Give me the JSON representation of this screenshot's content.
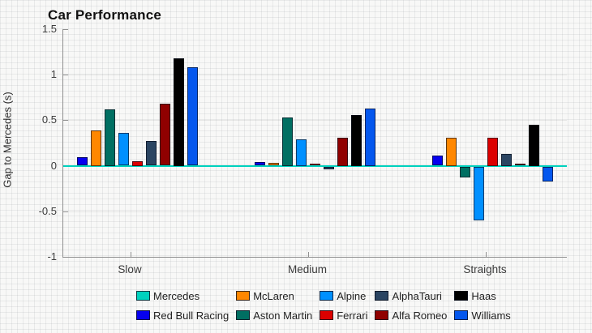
{
  "chart_data": {
    "type": "bar",
    "title": "Car Performance",
    "ylabel": "Gap to Mercedes (s)",
    "xlabel": "",
    "categories": [
      "Slow",
      "Medium",
      "Straights"
    ],
    "ylim": [
      -1,
      1.5
    ],
    "yticks": [
      1.5,
      1,
      0.5,
      0,
      -0.5,
      -1
    ],
    "legend_position": "bottom",
    "legend_columns": 5,
    "zero_line_color": "#00D2BE",
    "series": [
      {
        "name": "Mercedes",
        "color": "#00D2BE",
        "values": [
          0,
          0,
          0
        ]
      },
      {
        "name": "Red Bull Racing",
        "color": "#0600EF",
        "values": [
          0.09,
          0.04,
          0.11
        ]
      },
      {
        "name": "McLaren",
        "color": "#FF8700",
        "values": [
          0.39,
          0.03,
          0.31
        ]
      },
      {
        "name": "Aston Martin",
        "color": "#006F62",
        "values": [
          0.62,
          0.53,
          -0.12
        ]
      },
      {
        "name": "Alpine",
        "color": "#0090FF",
        "values": [
          0.36,
          0.29,
          -0.59
        ]
      },
      {
        "name": "Ferrari",
        "color": "#DC0000",
        "values": [
          0.05,
          0.02,
          0.31
        ]
      },
      {
        "name": "AlphaTauri",
        "color": "#2B4562",
        "values": [
          0.27,
          -0.03,
          0.13
        ]
      },
      {
        "name": "Alfa Romeo",
        "color": "#900000",
        "values": [
          0.68,
          0.31,
          0.02
        ]
      },
      {
        "name": "Haas",
        "color": "#000000",
        "values": [
          1.18,
          0.56,
          0.45
        ]
      },
      {
        "name": "Williams",
        "color": "#0457EE",
        "values": [
          1.08,
          0.63,
          -0.16
        ]
      }
    ]
  }
}
